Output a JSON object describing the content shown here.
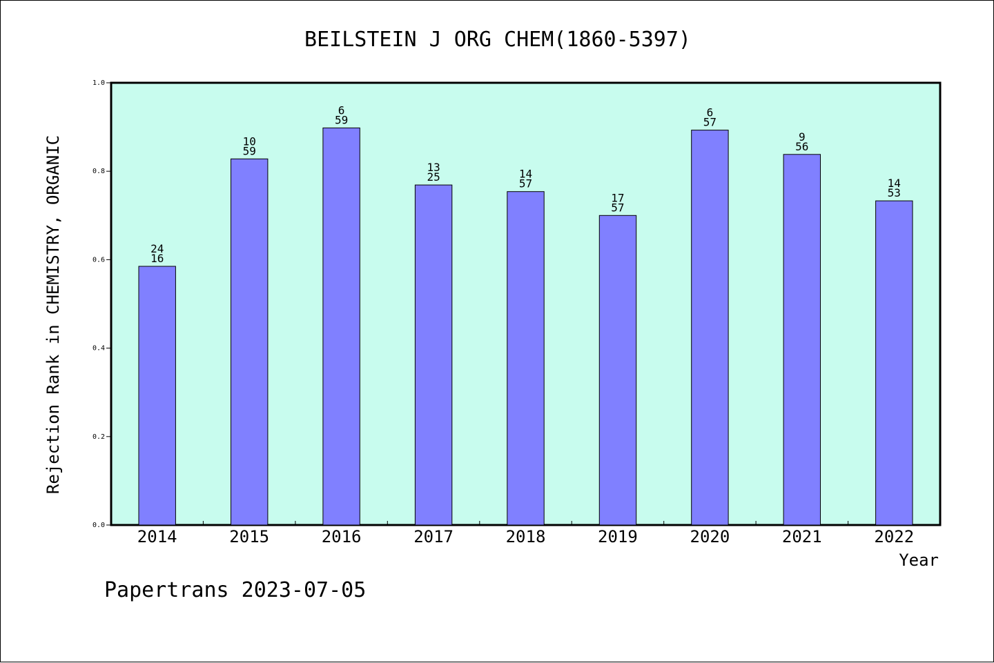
{
  "chart_data": {
    "type": "bar",
    "title": "BEILSTEIN J ORG CHEM(1860-5397)",
    "xlabel": "Year",
    "ylabel": "Rejection Rank in CHEMISTRY, ORGANIC",
    "ylim": [
      0,
      1.0
    ],
    "yticks": [
      "0.0",
      "0.2",
      "0.4",
      "0.6",
      "0.8",
      "1.0"
    ],
    "categories": [
      "2014",
      "2015",
      "2016",
      "2017",
      "2018",
      "2019",
      "2020",
      "2021",
      "2022"
    ],
    "values": [
      0.585,
      0.828,
      0.898,
      0.769,
      0.754,
      0.7,
      0.893,
      0.838,
      0.733
    ],
    "labels_top": [
      "24",
      "10",
      "6",
      "13",
      "14",
      "17",
      "6",
      "9",
      "14"
    ],
    "labels_bottom": [
      "16",
      "59",
      "59",
      "25",
      "57",
      "57",
      "57",
      "56",
      "53"
    ],
    "grid": false,
    "legend": "none",
    "colors": {
      "bar_fill": "#8080ff",
      "plot_background": "#c8fcee",
      "axis": "#000000"
    }
  },
  "footer": {
    "text": "Papertrans 2023-07-05"
  }
}
